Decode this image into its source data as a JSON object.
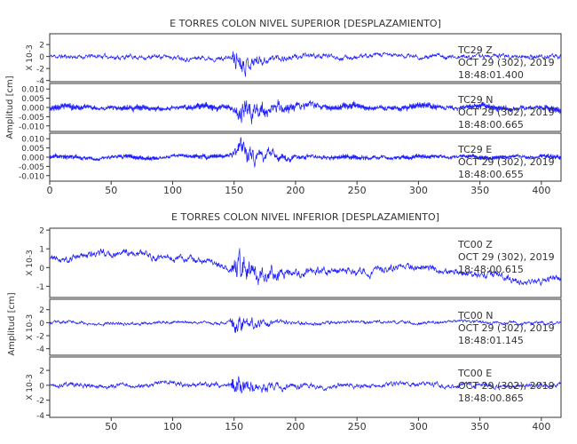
{
  "chart_data": [
    {
      "type": "line",
      "title": "E TORRES COLON NIVEL SUPERIOR [DESPLAZAMIENTO]",
      "ylabel": "Amplitud [cm]",
      "xlim": [
        0,
        416
      ],
      "x_ticks": [
        "0",
        "50",
        "100",
        "150",
        "200",
        "250",
        "300",
        "350",
        "400"
      ],
      "series": [
        {
          "name": "TC29 Z",
          "start_time": "18:48:01.400",
          "date": "OCT 29 (302), 2019",
          "ylim": [
            -4.2,
            3.8
          ],
          "y_ticks": [
            "-4",
            "-2",
            "0",
            "2"
          ],
          "y_multiplier": "X 10-3",
          "seed": 11,
          "amp": {
            "base": 0.55,
            "burst": 2.6,
            "burst_start": 147,
            "burst_peak": 150,
            "burst_decay": 18
          },
          "osc_amp": 0.0,
          "osc_freq": 0.0,
          "drift": 0.0
        },
        {
          "name": "TC29 N",
          "start_time": "18:48:00.665",
          "date": "OCT 29 (302), 2019",
          "ylim": [
            -0.013,
            0.013
          ],
          "y_ticks": [
            "-0.010",
            "-0.005",
            "0.000",
            "0.005",
            "0.010"
          ],
          "y_multiplier": "",
          "seed": 23,
          "amp": {
            "base": 0.0015,
            "burst": 0.0085,
            "burst_start": 146,
            "burst_peak": 158,
            "burst_decay": 22
          },
          "osc_amp": 0.0014,
          "osc_freq": 1.1,
          "drift": 0.0
        },
        {
          "name": "TC29 E",
          "start_time": "18:48:00.655",
          "date": "OCT 29 (302), 2019",
          "ylim": [
            -0.013,
            0.013
          ],
          "y_ticks": [
            "-0.010",
            "-0.005",
            "0.000",
            "0.005",
            "0.010"
          ],
          "y_multiplier": "",
          "seed": 37,
          "amp": {
            "base": 0.0012,
            "burst": 0.009,
            "burst_start": 146,
            "burst_peak": 156,
            "burst_decay": 20
          },
          "osc_amp": 0.001,
          "osc_freq": 1.3,
          "drift": 0.0
        }
      ]
    },
    {
      "type": "line",
      "title": "E TORRES COLON NIVEL INFERIOR [DESPLAZAMIENTO]",
      "ylabel": "Amplitud [cm]",
      "xlim": [
        0,
        416
      ],
      "x_ticks": [
        "50",
        "100",
        "150",
        "200",
        "250",
        "300",
        "350",
        "400"
      ],
      "series": [
        {
          "name": "TC00 Z",
          "start_time": "18:48:00.615",
          "date": "OCT 29 (302), 2019",
          "ylim": [
            -1.6,
            2.1
          ],
          "y_ticks": [
            "-1",
            "0",
            "1",
            "2"
          ],
          "y_multiplier": "X 10-3",
          "seed": 41,
          "amp": {
            "base": 0.28,
            "burst": 1.0,
            "burst_start": 147,
            "burst_peak": 152,
            "burst_decay": 22
          },
          "osc_amp": 0.0,
          "osc_freq": 0.0,
          "drift": 0.55
        },
        {
          "name": "TC00 N",
          "start_time": "18:48:01.145",
          "date": "OCT 29 (302), 2019",
          "ylim": [
            -5.0,
            3.6
          ],
          "y_ticks": [
            "-4",
            "-2",
            "0",
            "2"
          ],
          "y_multiplier": "X 10-3",
          "seed": 53,
          "amp": {
            "base": 0.35,
            "burst": 2.3,
            "burst_start": 146,
            "burst_peak": 149,
            "burst_decay": 16
          },
          "osc_amp": 0.0,
          "osc_freq": 0.0,
          "drift": 0.0
        },
        {
          "name": "TC00 E",
          "start_time": "18:48:00.865",
          "date": "OCT 29 (302), 2019",
          "ylim": [
            -4.3,
            3.8
          ],
          "y_ticks": [
            "-4",
            "-2",
            "0",
            "2"
          ],
          "y_multiplier": "X 10-3",
          "seed": 67,
          "amp": {
            "base": 0.45,
            "burst": 2.4,
            "burst_start": 146,
            "burst_peak": 150,
            "burst_decay": 17
          },
          "osc_amp": 0.0,
          "osc_freq": 0.0,
          "drift": 0.0
        }
      ]
    }
  ]
}
